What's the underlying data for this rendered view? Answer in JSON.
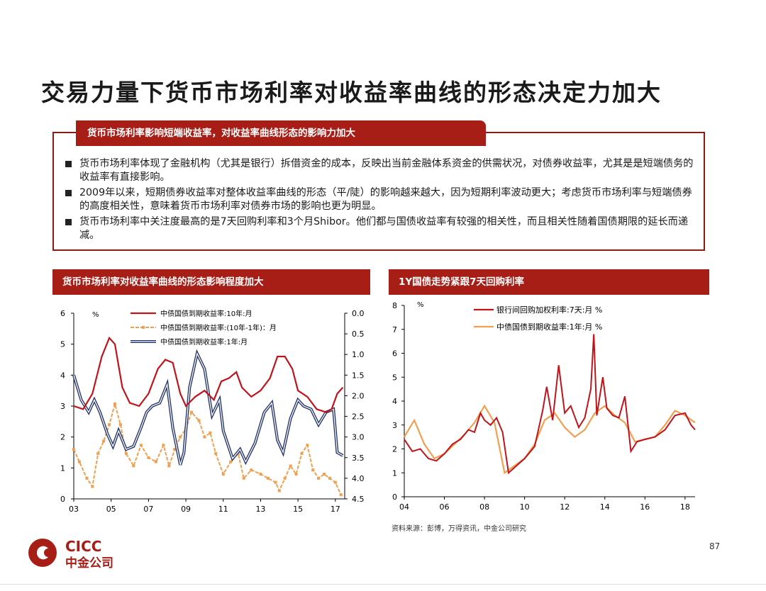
{
  "title": "交易力量下货币市场利率对收益率曲线的形态决定力加大",
  "summary": {
    "header": "货币市场利率影响短端收益率，对收益率曲线形态的影响力加大",
    "bullets": [
      "货币市场利率体现了金融机构（尤其是银行）拆借资金的成本，反映出当前金融体系资金的供需状况，对债券收益率，尤其是是短端债务的收益率有直接影响。",
      "2009年以来，短期债券收益率对整体收益率曲线的形态（平/陡）的影响越来越大，因为短期利率波动更大；考虑货币市场利率与短端债券的高度相关性，意味着货币市场利率对债券市场的影响也更为明显。",
      "货币市场利率中关注度最高的是7天回购利率和3个月Shibor。他们都与国债收益率有较强的相关性，而且相关性随着国债期限的延长而递减。"
    ]
  },
  "colors": {
    "accent": "#a61e16",
    "red": "#c0141c",
    "orange": "#f0a050",
    "navy": "#23336b"
  },
  "chart_data": [
    {
      "panel_title": "货币市场利率对收益率曲线的形态影响程度加大",
      "type": "line",
      "unit": "%",
      "x_ticks": [
        "03",
        "05",
        "07",
        "09",
        "11",
        "13",
        "15",
        "17"
      ],
      "xlim": [
        2003.0,
        2017.5
      ],
      "ylim_left": [
        0,
        6
      ],
      "yticks_left": [
        "0",
        "1",
        "2",
        "3",
        "4",
        "5",
        "6"
      ],
      "ylim_right": [
        4.5,
        0.0
      ],
      "yticks_right": [
        "0.0",
        "0.5",
        "1.0",
        "1.5",
        "2.0",
        "2.5",
        "3.0",
        "3.5",
        "4.0",
        "4.5"
      ],
      "series": [
        {
          "name": "中债国债到期收益率:10年:月",
          "axis": "left",
          "color": "#c0141c",
          "style": "solid",
          "x": [
            2003.0,
            2003.5,
            2004.0,
            2004.5,
            2004.9,
            2005.2,
            2005.6,
            2006.0,
            2006.5,
            2007.0,
            2007.5,
            2007.9,
            2008.3,
            2008.7,
            2009.0,
            2009.5,
            2010.0,
            2010.5,
            2010.9,
            2011.3,
            2011.7,
            2012.0,
            2012.5,
            2013.0,
            2013.5,
            2013.9,
            2014.3,
            2014.7,
            2015.0,
            2015.5,
            2016.0,
            2016.5,
            2016.8,
            2017.1,
            2017.4
          ],
          "y": [
            3.0,
            2.9,
            3.4,
            4.6,
            5.2,
            5.0,
            3.6,
            3.1,
            3.0,
            3.4,
            4.2,
            4.5,
            4.4,
            3.4,
            3.0,
            3.3,
            3.5,
            3.2,
            3.8,
            3.9,
            4.1,
            3.6,
            3.3,
            3.5,
            3.9,
            4.6,
            4.6,
            4.2,
            3.5,
            3.3,
            2.9,
            2.8,
            2.9,
            3.4,
            3.6
          ]
        },
        {
          "name": "中债国债到期收益率:(10年-1年)：月",
          "axis": "right",
          "color": "#f0a050",
          "style": "dashed",
          "x": [
            2003.0,
            2003.3,
            2003.7,
            2004.0,
            2004.3,
            2004.6,
            2004.9,
            2005.2,
            2005.5,
            2005.8,
            2006.2,
            2006.6,
            2007.0,
            2007.4,
            2007.8,
            2008.1,
            2008.4,
            2008.7,
            2009.0,
            2009.3,
            2009.7,
            2010.0,
            2010.3,
            2010.6,
            2011.0,
            2011.4,
            2011.8,
            2012.1,
            2012.5,
            2013.0,
            2013.4,
            2013.8,
            2014.0,
            2014.3,
            2014.6,
            2014.9,
            2015.2,
            2015.5,
            2015.8,
            2016.1,
            2016.4,
            2016.7,
            2017.0,
            2017.3
          ],
          "y": [
            3.3,
            3.6,
            4.0,
            4.2,
            3.4,
            3.1,
            2.7,
            2.2,
            2.7,
            3.4,
            3.7,
            3.2,
            3.5,
            3.6,
            3.2,
            3.7,
            3.3,
            3.0,
            2.8,
            2.4,
            2.6,
            3.0,
            2.9,
            3.4,
            3.9,
            3.6,
            3.4,
            4.0,
            3.8,
            3.9,
            4.0,
            4.1,
            4.3,
            4.0,
            3.7,
            3.9,
            3.4,
            3.2,
            3.8,
            4.0,
            3.9,
            4.0,
            4.1,
            4.4
          ]
        },
        {
          "name": "中债国债到期收益率:1年:月",
          "axis": "left",
          "color": "#23336b",
          "style": "double",
          "x": [
            2003.0,
            2003.4,
            2003.8,
            2004.1,
            2004.4,
            2004.8,
            2005.1,
            2005.4,
            2005.8,
            2006.2,
            2006.6,
            2006.9,
            2007.2,
            2007.6,
            2008.0,
            2008.3,
            2008.7,
            2008.9,
            2009.2,
            2009.6,
            2010.0,
            2010.4,
            2010.8,
            2011.0,
            2011.5,
            2011.9,
            2012.2,
            2012.7,
            2013.2,
            2013.6,
            2013.9,
            2014.2,
            2014.6,
            2015.0,
            2015.3,
            2015.7,
            2016.1,
            2016.5,
            2016.9,
            2017.1,
            2017.4
          ],
          "y": [
            4.0,
            3.2,
            2.8,
            3.2,
            2.8,
            2.1,
            1.7,
            2.2,
            1.6,
            1.7,
            2.3,
            2.8,
            3.0,
            3.1,
            3.7,
            2.3,
            1.1,
            1.5,
            3.6,
            4.7,
            4.2,
            2.7,
            3.2,
            2.2,
            1.3,
            1.6,
            1.2,
            1.8,
            2.8,
            3.1,
            1.9,
            1.5,
            2.6,
            3.2,
            3.0,
            2.9,
            2.4,
            2.8,
            2.9,
            1.5,
            1.4
          ]
        }
      ]
    },
    {
      "panel_title": "1Y国债走势紧跟7天回购利率",
      "type": "line",
      "unit": "%",
      "x_ticks": [
        "04",
        "06",
        "08",
        "10",
        "12",
        "14",
        "16",
        "18"
      ],
      "xlim": [
        2004.0,
        2018.5
      ],
      "ylim": [
        0,
        8
      ],
      "yticks": [
        "0",
        "1",
        "2",
        "3",
        "4",
        "5",
        "6",
        "7",
        "8"
      ],
      "series": [
        {
          "name": "银行间回购加权利率:7天:月 %",
          "color": "#c0141c",
          "x": [
            2004.0,
            2004.4,
            2004.8,
            2005.2,
            2005.6,
            2006.0,
            2006.4,
            2006.8,
            2007.2,
            2007.5,
            2007.8,
            2008.0,
            2008.3,
            2008.6,
            2008.9,
            2009.2,
            2009.6,
            2010.0,
            2010.5,
            2010.9,
            2011.1,
            2011.4,
            2011.7,
            2012.0,
            2012.3,
            2012.7,
            2013.0,
            2013.3,
            2013.45,
            2013.6,
            2013.9,
            2014.1,
            2014.4,
            2014.7,
            2015.0,
            2015.3,
            2015.6,
            2016.0,
            2016.5,
            2017.0,
            2017.5,
            2018.0,
            2018.3,
            2018.5
          ],
          "y": [
            2.4,
            1.9,
            2.0,
            1.6,
            1.5,
            1.8,
            2.2,
            2.4,
            2.8,
            2.7,
            3.5,
            3.2,
            3.0,
            3.3,
            2.7,
            1.0,
            1.3,
            1.6,
            2.1,
            3.6,
            4.6,
            3.2,
            5.5,
            3.5,
            3.8,
            2.9,
            3.3,
            4.5,
            6.8,
            3.4,
            5.0,
            3.7,
            3.4,
            3.3,
            4.2,
            1.9,
            2.3,
            2.4,
            2.5,
            2.8,
            3.4,
            3.5,
            3.0,
            2.8
          ]
        },
        {
          "name": "中债国债到期收益率:1年:月 %",
          "color": "#f0a050",
          "x": [
            2004.0,
            2004.5,
            2005.0,
            2005.5,
            2006.0,
            2006.5,
            2007.0,
            2007.5,
            2008.0,
            2008.5,
            2009.0,
            2009.5,
            2010.0,
            2010.5,
            2011.0,
            2011.5,
            2012.0,
            2012.5,
            2013.0,
            2013.5,
            2014.0,
            2014.5,
            2015.0,
            2015.5,
            2016.0,
            2016.5,
            2017.0,
            2017.5,
            2018.0,
            2018.5
          ],
          "y": [
            2.5,
            3.2,
            2.2,
            1.6,
            1.8,
            2.2,
            2.6,
            3.1,
            3.8,
            3.1,
            1.0,
            1.3,
            1.6,
            2.2,
            3.2,
            3.5,
            2.9,
            2.5,
            2.8,
            3.5,
            3.8,
            3.4,
            3.1,
            2.3,
            2.4,
            2.5,
            3.0,
            3.6,
            3.4,
            3.1
          ]
        }
      ]
    }
  ],
  "source": "资料来源：彭博，万得资讯，中金公司研究",
  "logo": {
    "brand": "CICC",
    "name_cn": "中金公司"
  },
  "page_number": "87"
}
